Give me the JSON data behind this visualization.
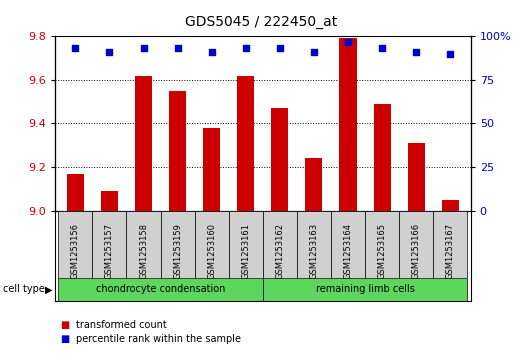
{
  "title": "GDS5045 / 222450_at",
  "samples": [
    "GSM1253156",
    "GSM1253157",
    "GSM1253158",
    "GSM1253159",
    "GSM1253160",
    "GSM1253161",
    "GSM1253162",
    "GSM1253163",
    "GSM1253164",
    "GSM1253165",
    "GSM1253166",
    "GSM1253167"
  ],
  "bar_values": [
    9.17,
    9.09,
    9.62,
    9.55,
    9.38,
    9.62,
    9.47,
    9.24,
    9.79,
    9.49,
    9.31,
    9.05
  ],
  "percentile_values": [
    93,
    91,
    93,
    93,
    91,
    93,
    93,
    91,
    97,
    93,
    91,
    90
  ],
  "ylim_left": [
    9.0,
    9.8
  ],
  "ylim_right": [
    0,
    100
  ],
  "yticks_left": [
    9.0,
    9.2,
    9.4,
    9.6,
    9.8
  ],
  "yticks_right": [
    0,
    25,
    50,
    75,
    100
  ],
  "bar_color": "#cc0000",
  "dot_color": "#0000cc",
  "grid_color": "#000000",
  "tick_area_color": "#d0d0d0",
  "group1_label": "chondrocyte condensation",
  "group2_label": "remaining limb cells",
  "group_color": "#5cd65c",
  "cell_type_label": "cell type",
  "legend_bar_label": "transformed count",
  "legend_dot_label": "percentile rank within the sample",
  "group1_indices": [
    0,
    1,
    2,
    3,
    4,
    5
  ],
  "group2_indices": [
    6,
    7,
    8,
    9,
    10,
    11
  ],
  "title_fontsize": 10,
  "axis_fontsize": 8,
  "label_fontsize": 6,
  "cell_type_fontsize": 7,
  "legend_fontsize": 7
}
